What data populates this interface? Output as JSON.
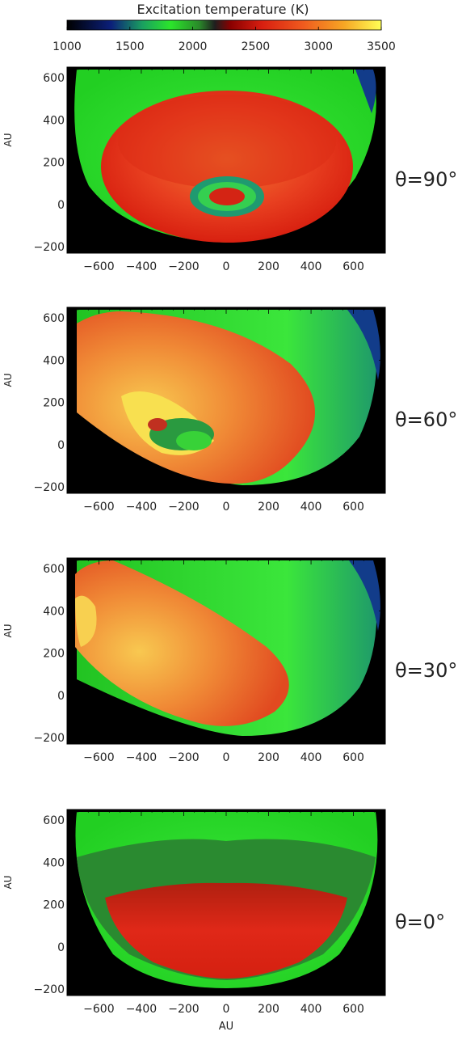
{
  "chart_data": {
    "type": "heatmap",
    "colorbar": {
      "title": "Excitation temperature (K)",
      "ticks": [
        1000,
        1500,
        2000,
        2500,
        3000,
        3500
      ],
      "range": [
        1000,
        3500
      ],
      "colors": [
        "#000000",
        "#0a2a9a",
        "#15c070",
        "#2ee62e",
        "#1f5f1f",
        "#b40000",
        "#e83c20",
        "#f07a20",
        "#f4c020",
        "#ffff55"
      ]
    },
    "panels": [
      {
        "label": "θ=90°",
        "xlabel": "",
        "ylabel": "AU",
        "xlim": [
          -750,
          750
        ],
        "ylim": [
          -230,
          650
        ],
        "xticks": [
          -600,
          -400,
          -200,
          0,
          200,
          400,
          600
        ],
        "yticks": [
          -200,
          0,
          200,
          400,
          600
        ]
      },
      {
        "label": "θ=60°",
        "xlabel": "",
        "ylabel": "AU",
        "xlim": [
          -750,
          750
        ],
        "ylim": [
          -230,
          650
        ],
        "xticks": [
          -600,
          -400,
          -200,
          0,
          200,
          400,
          600
        ],
        "yticks": [
          -200,
          0,
          200,
          400,
          600
        ]
      },
      {
        "label": "θ=30°",
        "xlabel": "",
        "ylabel": "AU",
        "xlim": [
          -750,
          750
        ],
        "ylim": [
          -230,
          650
        ],
        "xticks": [
          -600,
          -400,
          -200,
          0,
          200,
          400,
          600
        ],
        "yticks": [
          -200,
          0,
          200,
          400,
          600
        ]
      },
      {
        "label": "θ=0°",
        "xlabel": "AU",
        "ylabel": "AU",
        "xlim": [
          -750,
          750
        ],
        "ylim": [
          -230,
          650
        ],
        "xticks": [
          -600,
          -400,
          -200,
          0,
          200,
          400,
          600
        ],
        "yticks": [
          -200,
          0,
          200,
          400,
          600
        ]
      }
    ]
  }
}
